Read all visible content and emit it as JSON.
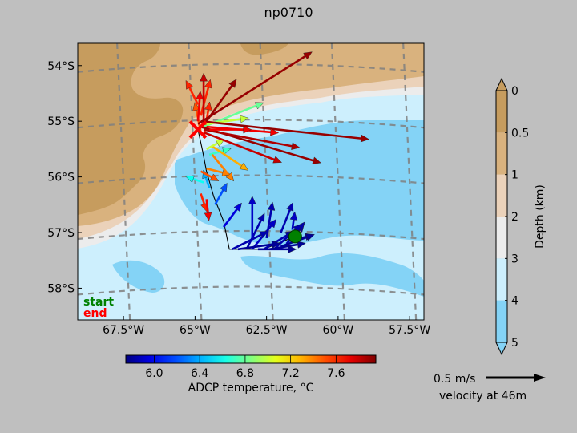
{
  "chart_data": {
    "type": "map-quiver",
    "title": "np0710",
    "map": {
      "lon_range": [
        -69.1,
        -57.0
      ],
      "lat_range": [
        -58.57,
        -53.6
      ],
      "x_ticks": [
        {
          "v": -67.5,
          "label": "67.5°W"
        },
        {
          "v": -65,
          "label": "65°W"
        },
        {
          "v": -62.5,
          "label": "62.5°W"
        },
        {
          "v": -60,
          "label": "60°W"
        },
        {
          "v": -57.5,
          "label": "57.5°W"
        }
      ],
      "y_ticks": [
        {
          "v": -54,
          "label": "54°S"
        },
        {
          "v": -55,
          "label": "55°S"
        },
        {
          "v": -56,
          "label": "56°S"
        },
        {
          "v": -57,
          "label": "57°S"
        },
        {
          "v": -58,
          "label": "58°S"
        }
      ],
      "graticule": "dashed grey",
      "legend": {
        "start": "start",
        "end": "end"
      },
      "start_marker": {
        "lon": -61.5,
        "lat": -57.07,
        "color": "#008000"
      },
      "end_marker": {
        "lon": -64.9,
        "lat": -55.15,
        "color": "#ff0000"
      }
    },
    "track": [
      [
        -64.9,
        -55.15
      ],
      [
        -64.75,
        -55.5
      ],
      [
        -64.6,
        -55.9
      ],
      [
        -64.35,
        -56.35
      ],
      [
        -64.0,
        -56.8
      ],
      [
        -63.8,
        -57.3
      ],
      [
        -62.6,
        -57.3
      ],
      [
        -61.5,
        -57.07
      ]
    ],
    "arrows": [
      {
        "lon": -61.6,
        "lat": -57.1,
        "u": 0.1,
        "v": 0.12,
        "t": 5.8
      },
      {
        "lon": -61.7,
        "lat": -57.15,
        "u": 0.2,
        "v": 0.05,
        "t": 5.8
      },
      {
        "lon": -61.8,
        "lat": -57.2,
        "u": 0.15,
        "v": 0.18,
        "t": 5.85
      },
      {
        "lon": -62.0,
        "lat": -57.25,
        "u": 0.28,
        "v": 0.1,
        "t": 5.8
      },
      {
        "lon": -62.2,
        "lat": -57.28,
        "u": 0.22,
        "v": 0.2,
        "t": 5.85
      },
      {
        "lon": -62.4,
        "lat": -57.3,
        "u": 0.3,
        "v": 0.05,
        "t": 5.8
      },
      {
        "lon": -62.6,
        "lat": -57.3,
        "u": 0.25,
        "v": 0.15,
        "t": 5.85
      },
      {
        "lon": -62.8,
        "lat": -57.3,
        "u": 0.32,
        "v": 0.0,
        "t": 5.8
      },
      {
        "lon": -63.0,
        "lat": -57.3,
        "u": 0.2,
        "v": 0.25,
        "t": 5.9
      },
      {
        "lon": -63.2,
        "lat": -57.3,
        "u": 0.15,
        "v": 0.3,
        "t": 5.85
      },
      {
        "lon": -63.5,
        "lat": -57.3,
        "u": 0.35,
        "v": 0.05,
        "t": 5.8
      },
      {
        "lon": -63.7,
        "lat": -57.3,
        "u": 0.3,
        "v": 0.15,
        "t": 5.85
      },
      {
        "lon": -63.0,
        "lat": -57.1,
        "u": 0.0,
        "v": 0.35,
        "t": 5.9
      },
      {
        "lon": -62.5,
        "lat": -57.1,
        "u": 0.05,
        "v": 0.3,
        "t": 5.85
      },
      {
        "lon": -62.0,
        "lat": -57.0,
        "u": 0.1,
        "v": 0.25,
        "t": 5.85
      },
      {
        "lon": -61.6,
        "lat": -56.95,
        "u": 0.02,
        "v": 0.15,
        "t": 5.9
      },
      {
        "lon": -64.0,
        "lat": -56.9,
        "u": 0.15,
        "v": 0.2,
        "t": 5.95
      },
      {
        "lon": -64.3,
        "lat": -56.5,
        "u": 0.1,
        "v": 0.18,
        "t": 6.2
      },
      {
        "lon": -64.5,
        "lat": -56.2,
        "u": -0.05,
        "v": 0.15,
        "t": 6.4
      },
      {
        "lon": -64.7,
        "lat": -56.1,
        "u": -0.15,
        "v": 0.05,
        "t": 6.6
      },
      {
        "lon": -64.8,
        "lat": -56.3,
        "u": 0.05,
        "v": -0.15,
        "t": 7.6
      },
      {
        "lon": -64.6,
        "lat": -56.4,
        "u": 0.02,
        "v": -0.18,
        "t": 7.7
      },
      {
        "lon": -64.8,
        "lat": -55.9,
        "u": 0.15,
        "v": -0.08,
        "t": 7.5
      },
      {
        "lon": -64.6,
        "lat": -55.85,
        "u": 0.2,
        "v": -0.05,
        "t": 7.4
      },
      {
        "lon": -64.5,
        "lat": -55.6,
        "u": 0.18,
        "v": 0.05,
        "t": 6.7
      },
      {
        "lon": -64.4,
        "lat": -55.45,
        "u": 0.3,
        "v": -0.2,
        "t": 7.3
      },
      {
        "lon": -64.6,
        "lat": -55.5,
        "u": 0.15,
        "v": 0.08,
        "t": 7.0
      },
      {
        "lon": -64.7,
        "lat": -55.3,
        "u": 0.05,
        "v": 0.3,
        "t": 7.6
      },
      {
        "lon": -64.8,
        "lat": -55.2,
        "u": -0.05,
        "v": 0.25,
        "t": 7.5
      },
      {
        "lon": -64.9,
        "lat": -55.0,
        "u": 0.02,
        "v": 0.25,
        "t": 7.7
      },
      {
        "lon": -64.8,
        "lat": -54.9,
        "u": 0.08,
        "v": 0.3,
        "t": 7.6
      },
      {
        "lon": -64.7,
        "lat": -55.0,
        "u": 0.0,
        "v": 0.4,
        "t": 7.8
      },
      {
        "lon": -64.6,
        "lat": -55.0,
        "u": 0.25,
        "v": 0.35,
        "t": 7.9
      },
      {
        "lon": -64.7,
        "lat": -55.1,
        "u": 0.5,
        "v": 0.2,
        "t": 6.8
      },
      {
        "lon": -64.6,
        "lat": -55.05,
        "u": 0.35,
        "v": 0.05,
        "t": 7.0
      },
      {
        "lon": -64.9,
        "lat": -55.05,
        "u": 0.95,
        "v": 0.6,
        "t": 7.9
      },
      {
        "lon": -64.8,
        "lat": -55.0,
        "u": 1.4,
        "v": -0.15,
        "t": 7.9
      },
      {
        "lon": -64.8,
        "lat": -55.1,
        "u": 1.0,
        "v": -0.3,
        "t": 7.9
      },
      {
        "lon": -64.7,
        "lat": -55.15,
        "u": 0.8,
        "v": -0.15,
        "t": 7.85
      },
      {
        "lon": -64.6,
        "lat": -55.1,
        "u": 0.6,
        "v": -0.05,
        "t": 7.7
      },
      {
        "lon": -64.7,
        "lat": -55.2,
        "u": 0.65,
        "v": -0.25,
        "t": 7.8
      },
      {
        "lon": -64.5,
        "lat": -55.15,
        "u": 0.35,
        "v": 0.0,
        "t": 7.7
      },
      {
        "lon": -64.9,
        "lat": -54.7,
        "u": -0.1,
        "v": 0.2,
        "t": 7.6
      },
      {
        "lon": -64.4,
        "lat": -55.6,
        "u": 0.18,
        "v": -0.22,
        "t": 7.4
      }
    ],
    "colorbar_temperature": {
      "label": "ADCP temperature, °C",
      "range": [
        5.75,
        7.95
      ],
      "ticks": [
        {
          "v": 6.0,
          "label": "6.0"
        },
        {
          "v": 6.4,
          "label": "6.4"
        },
        {
          "v": 6.8,
          "label": "6.8"
        },
        {
          "v": 7.2,
          "label": "7.2"
        },
        {
          "v": 7.6,
          "label": "7.6"
        }
      ],
      "colormap": "jet"
    },
    "colorbar_depth": {
      "label": "Depth (km)",
      "ticks": [
        {
          "v": 0,
          "label": "0"
        },
        {
          "v": 0.5,
          "label": "0.5"
        },
        {
          "v": 1,
          "label": "1"
        },
        {
          "v": 2,
          "label": "2"
        },
        {
          "v": 3,
          "label": "3"
        },
        {
          "v": 4,
          "label": "4"
        },
        {
          "v": 5,
          "label": "5"
        }
      ],
      "bands": [
        {
          "from": 0,
          "to": 0.5,
          "color": "#c69c5e"
        },
        {
          "from": 0.5,
          "to": 1,
          "color": "#d9b27e"
        },
        {
          "from": 1,
          "to": 2,
          "color": "#ebd2ba"
        },
        {
          "from": 2,
          "to": 3,
          "color": "#ececec"
        },
        {
          "from": 3,
          "to": 4,
          "color": "#cdeffd"
        },
        {
          "from": 4,
          "to": 5,
          "color": "#84d3f6"
        }
      ]
    },
    "quiver_key": {
      "label": "0.5 m/s",
      "speed": 0.5,
      "caption": "velocity at 46m"
    }
  }
}
